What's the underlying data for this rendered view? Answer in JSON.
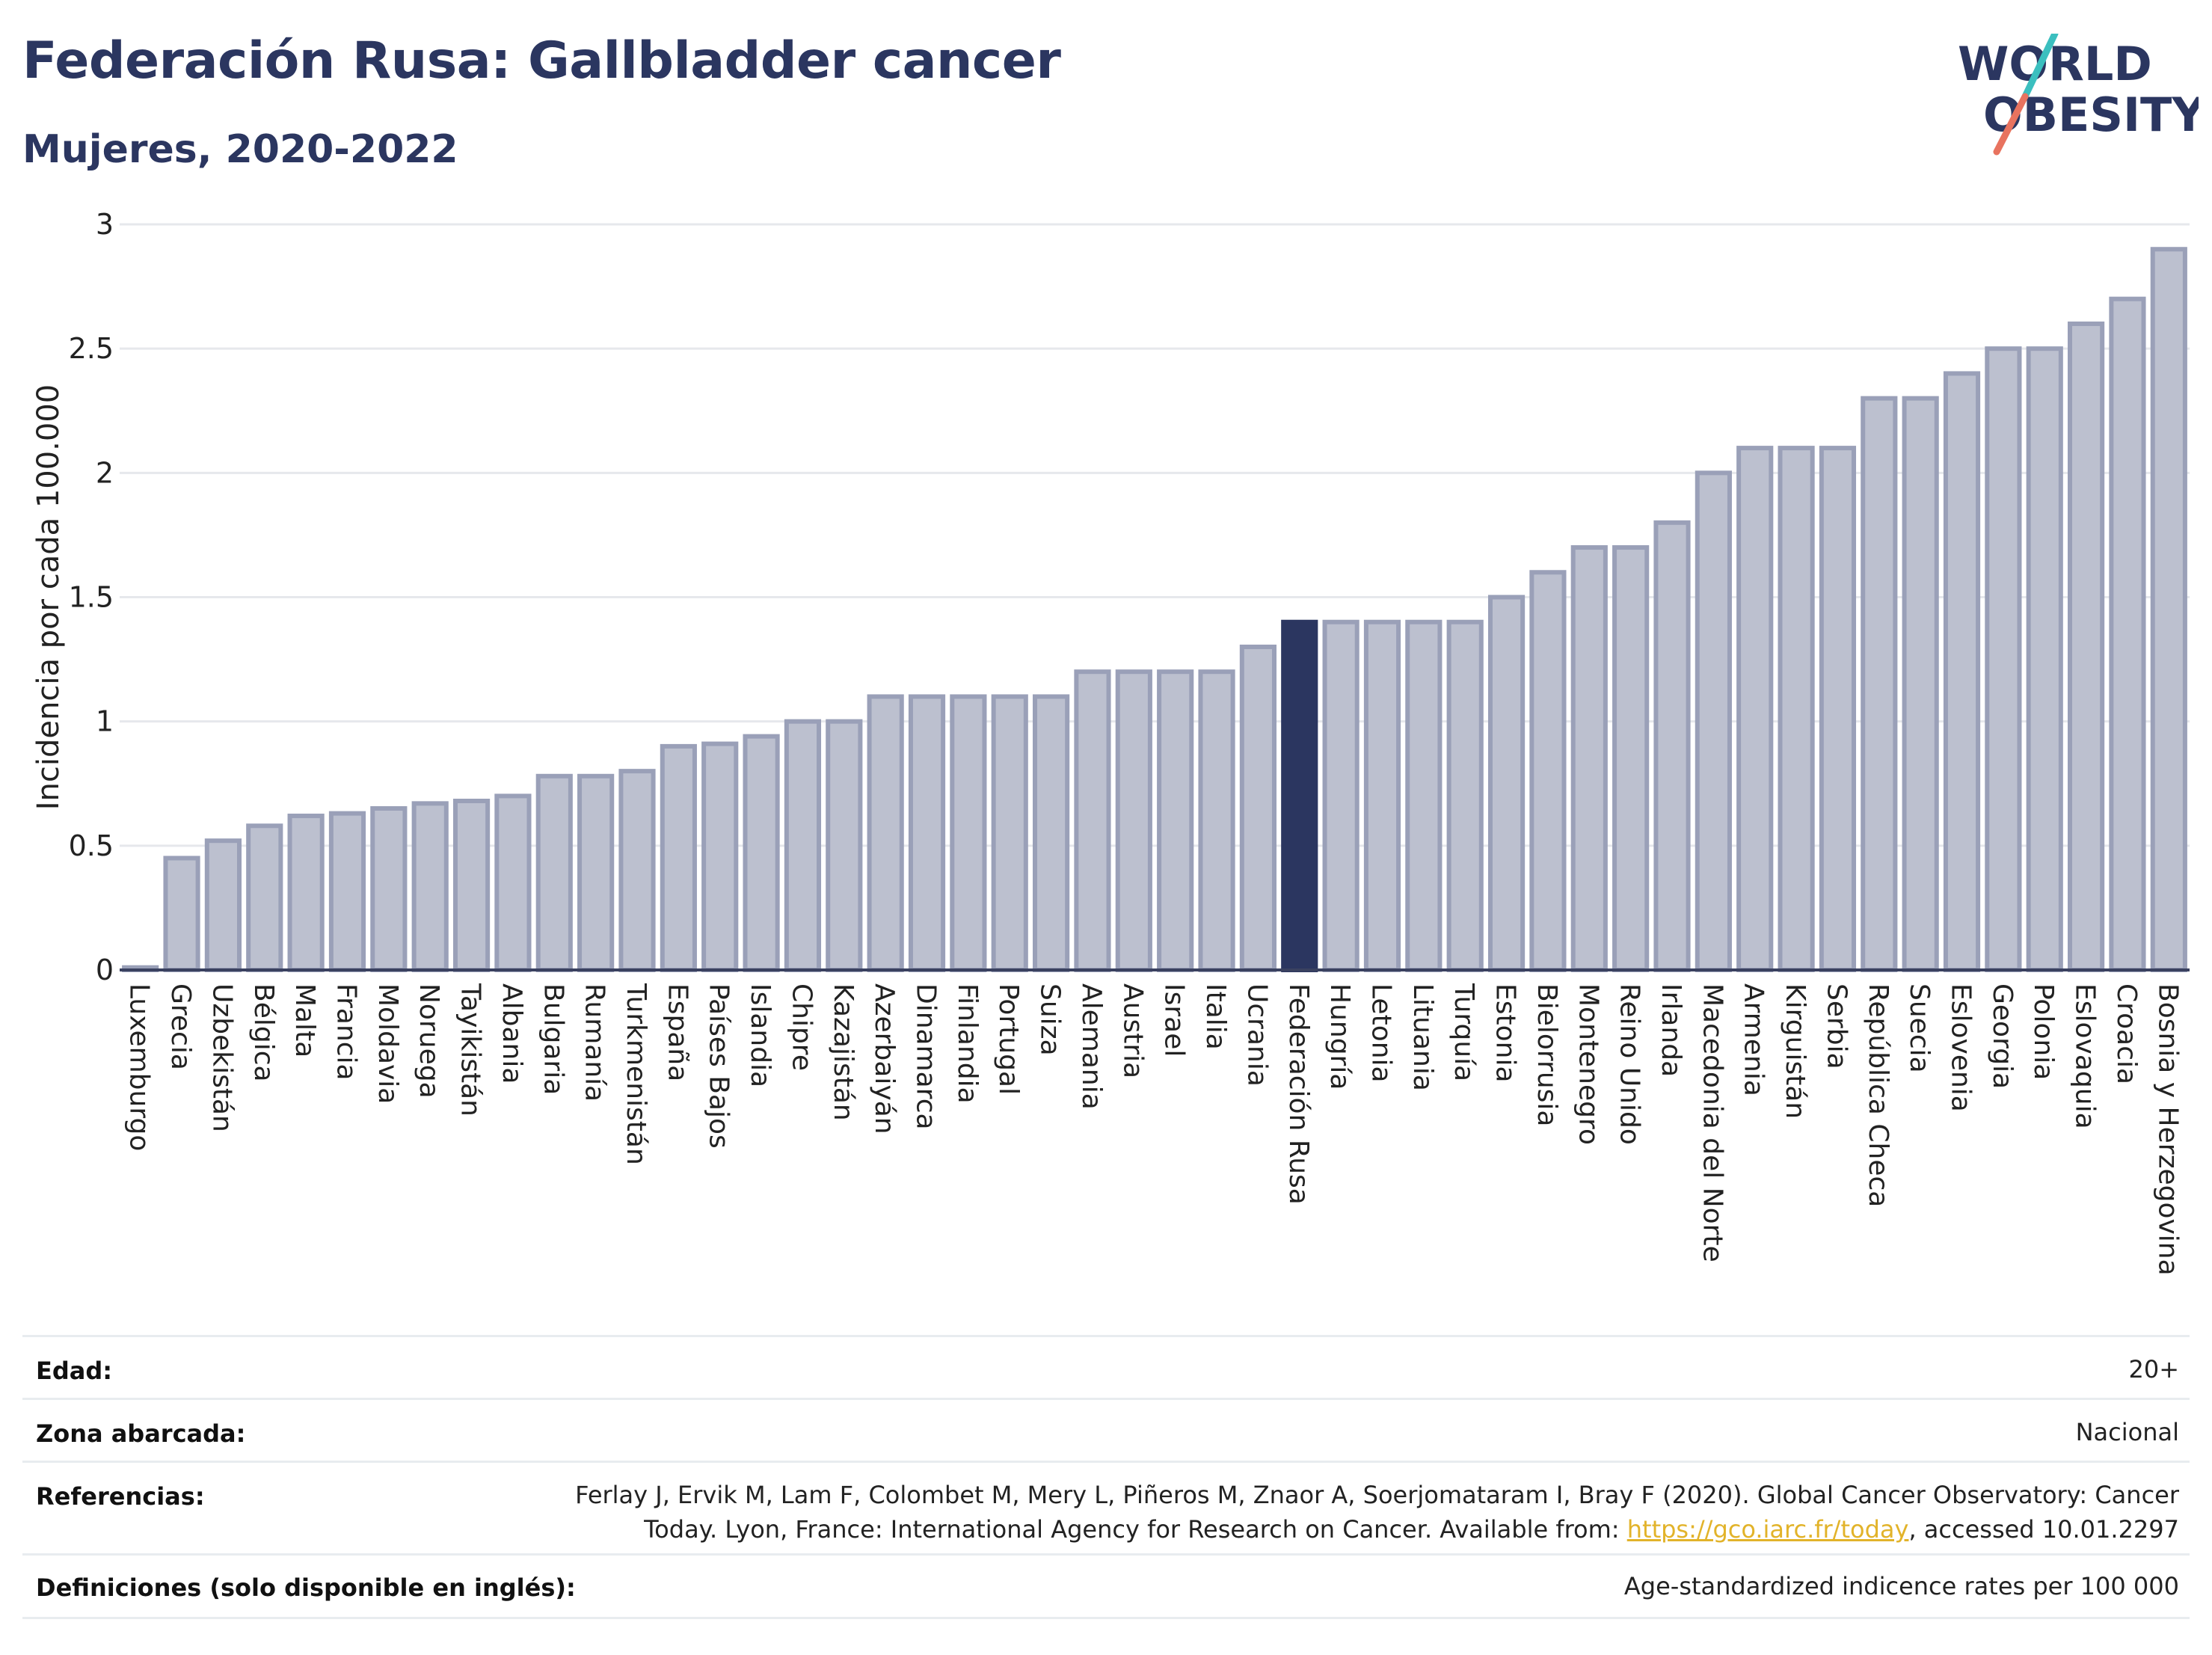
{
  "header": {
    "title": "Federación Rusa: Gallbladder cancer",
    "subtitle": "Mujeres, 2020-2022"
  },
  "logo": {
    "line1": "WORLD",
    "line2": "OBESITY"
  },
  "colors": {
    "highlight": "#2b3660",
    "bar_fill": "#bcc0cf",
    "bar_stroke": "#9aa0b8",
    "grid": "#e6e8ec",
    "logo_text": "#2b3660",
    "logo_slash_top": "#3bbfbf",
    "logo_slash_bottom": "#e8735f"
  },
  "chart_data": {
    "type": "bar",
    "ylabel": "Incidencia por cada 100.000",
    "ylim": [
      0,
      3
    ],
    "yticks": [
      0,
      0.5,
      1,
      1.5,
      2,
      2.5,
      3
    ],
    "ytick_labels": [
      "0",
      "0.5",
      "1",
      "1.5",
      "2",
      "2.5",
      "3"
    ],
    "grid": true,
    "highlight": "Federación Rusa",
    "categories": [
      "Luxemburgo",
      "Grecia",
      "Uzbekistán",
      "Bélgica",
      "Malta",
      "Francia",
      "Moldavia",
      "Noruega",
      "Tayikistán",
      "Albania",
      "Bulgaria",
      "Rumanía",
      "Turkmenistán",
      "España",
      "Países Bajos",
      "Islandia",
      "Chipre",
      "Kazajistán",
      "Azerbaiyán",
      "Dinamarca",
      "Finlandia",
      "Portugal",
      "Suiza",
      "Alemania",
      "Austria",
      "Israel",
      "Italia",
      "Ucrania",
      "Federación Rusa",
      "Hungría",
      "Letonia",
      "Lituania",
      "Turquía",
      "Estonia",
      "Bielorrusia",
      "Montenegro",
      "Reino Unido",
      "Irlanda",
      "Macedonia del Norte",
      "Armenia",
      "Kirguistán",
      "Serbia",
      "República Checa",
      "Suecia",
      "Eslovenia",
      "Georgia",
      "Polonia",
      "Eslovaquia",
      "Croacia",
      "Bosnia y Herzegovina"
    ],
    "values": [
      0.01,
      0.45,
      0.52,
      0.58,
      0.62,
      0.63,
      0.65,
      0.67,
      0.68,
      0.7,
      0.78,
      0.78,
      0.8,
      0.9,
      0.91,
      0.94,
      1.0,
      1.0,
      1.1,
      1.1,
      1.1,
      1.1,
      1.1,
      1.2,
      1.2,
      1.2,
      1.2,
      1.3,
      1.4,
      1.4,
      1.4,
      1.4,
      1.4,
      1.5,
      1.6,
      1.7,
      1.7,
      1.8,
      2.0,
      2.1,
      2.1,
      2.1,
      2.3,
      2.3,
      2.4,
      2.5,
      2.5,
      2.6,
      2.7,
      2.9
    ]
  },
  "meta": [
    {
      "key": "Edad:",
      "value": "20+"
    },
    {
      "key": "Zona abarcada:",
      "value": "Nacional"
    },
    {
      "key": "Referencias:",
      "value_line1": "Ferlay J, Ervik M, Lam F, Colombet M, Mery L, Piñeros M, Znaor A, Soerjomataram I, Bray F (2020). Global Cancer Observatory: Cancer",
      "value_line2_pre": "Today. Lyon, France: International Agency for Research on Cancer. Available from: ",
      "value_link": "https://gco.iarc.fr/today",
      "value_line2_post": ", accessed 10.01.2297"
    },
    {
      "key": "Definiciones (solo disponible en inglés):",
      "value": "Age-standardized indicence rates per 100 000"
    }
  ]
}
